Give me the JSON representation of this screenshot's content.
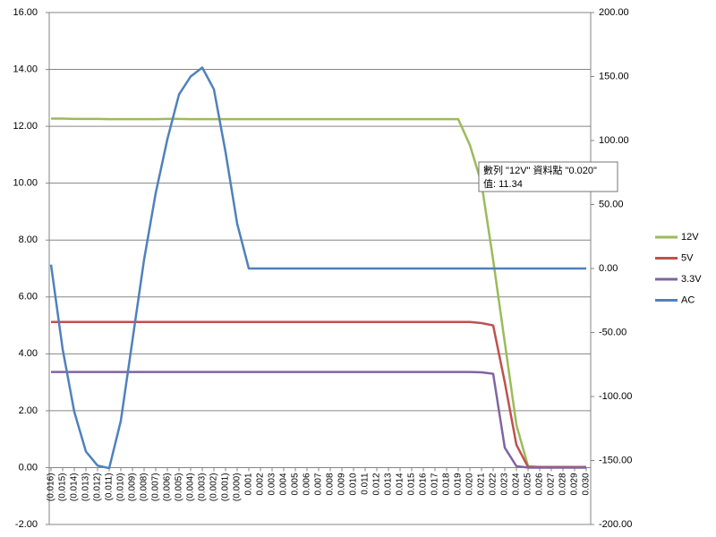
{
  "chart_data": {
    "type": "line",
    "categories": [
      "(0.016)",
      "(0.015)",
      "(0.014)",
      "(0.013)",
      "(0.012)",
      "(0.011)",
      "(0.010)",
      "(0.009)",
      "(0.008)",
      "(0.007)",
      "(0.006)",
      "(0.005)",
      "(0.004)",
      "(0.003)",
      "(0.002)",
      "(0.001)",
      "(0.000)",
      "0.001",
      "0.002",
      "0.003",
      "0.004",
      "0.005",
      "0.006",
      "0.007",
      "0.008",
      "0.009",
      "0.010",
      "0.011",
      "0.012",
      "0.013",
      "0.014",
      "0.015",
      "0.016",
      "0.017",
      "0.018",
      "0.019",
      "0.020",
      "0.021",
      "0.022",
      "0.023",
      "0.024",
      "0.025",
      "0.026",
      "0.027",
      "0.028",
      "0.029",
      "0.030"
    ],
    "series": [
      {
        "name": "12V",
        "color": "#9bbb59",
        "values": [
          12.27,
          12.27,
          12.26,
          12.26,
          12.26,
          12.25,
          12.25,
          12.25,
          12.25,
          12.25,
          12.26,
          12.26,
          12.25,
          12.25,
          12.25,
          12.25,
          12.25,
          12.25,
          12.25,
          12.25,
          12.25,
          12.25,
          12.25,
          12.25,
          12.25,
          12.25,
          12.25,
          12.25,
          12.25,
          12.25,
          12.25,
          12.25,
          12.25,
          12.25,
          12.25,
          12.25,
          11.34,
          10.0,
          7.3,
          4.4,
          1.5,
          0.05,
          0.02,
          0.02,
          0.02,
          0.02,
          0.02
        ]
      },
      {
        "name": "5V",
        "color": "#c0504d",
        "values": [
          5.12,
          5.12,
          5.12,
          5.12,
          5.12,
          5.12,
          5.12,
          5.12,
          5.12,
          5.12,
          5.12,
          5.12,
          5.12,
          5.12,
          5.12,
          5.12,
          5.12,
          5.12,
          5.12,
          5.12,
          5.12,
          5.12,
          5.12,
          5.12,
          5.12,
          5.12,
          5.12,
          5.12,
          5.12,
          5.12,
          5.12,
          5.12,
          5.12,
          5.12,
          5.12,
          5.12,
          5.12,
          5.08,
          5.0,
          3.0,
          0.8,
          0.02,
          0.02,
          0.02,
          0.02,
          0.02,
          0.02
        ]
      },
      {
        "name": "3.3V",
        "color": "#8064a2",
        "values": [
          3.36,
          3.36,
          3.36,
          3.36,
          3.36,
          3.36,
          3.36,
          3.36,
          3.36,
          3.36,
          3.36,
          3.36,
          3.36,
          3.36,
          3.36,
          3.36,
          3.36,
          3.36,
          3.36,
          3.36,
          3.36,
          3.36,
          3.36,
          3.36,
          3.36,
          3.36,
          3.36,
          3.36,
          3.36,
          3.36,
          3.36,
          3.36,
          3.36,
          3.36,
          3.36,
          3.36,
          3.36,
          3.35,
          3.3,
          0.7,
          0.05,
          0.0,
          0.0,
          0.0,
          0.0,
          0.0,
          0.0
        ]
      },
      {
        "name": "AC",
        "color": "#4f81bd",
        "axis": "y2",
        "values": [
          3,
          -63,
          -112,
          -143,
          -154,
          -156,
          -119,
          -56,
          7,
          59,
          101,
          136,
          150,
          157,
          140,
          91,
          35,
          0,
          0,
          0,
          0,
          0,
          0,
          0,
          0,
          0,
          0,
          0,
          0,
          0,
          0,
          0,
          0,
          0,
          0,
          0,
          0,
          0,
          0,
          0,
          0,
          0,
          0,
          0,
          0,
          0,
          0
        ]
      }
    ],
    "ylim": [
      -2,
      16
    ],
    "yticks": [
      {
        "value": -2,
        "label": "-2.00"
      },
      {
        "value": 0,
        "label": "0.00"
      },
      {
        "value": 2,
        "label": "2.00"
      },
      {
        "value": 4,
        "label": "4.00"
      },
      {
        "value": 6,
        "label": "6.00"
      },
      {
        "value": 8,
        "label": "8.00"
      },
      {
        "value": 10,
        "label": "10.00"
      },
      {
        "value": 12,
        "label": "12.00"
      },
      {
        "value": 14,
        "label": "14.00"
      },
      {
        "value": 16,
        "label": "16.00"
      }
    ],
    "y2lim": [
      -200,
      200
    ],
    "y2ticks": [
      {
        "value": -200,
        "label": "-200.00"
      },
      {
        "value": -150,
        "label": "-150.00"
      },
      {
        "value": -100,
        "label": "-100.00"
      },
      {
        "value": -50,
        "label": "-50.00"
      },
      {
        "value": 0,
        "label": "0.00"
      },
      {
        "value": 50,
        "label": "50.00"
      },
      {
        "value": 100,
        "label": "100.00"
      },
      {
        "value": 150,
        "label": "150.00"
      },
      {
        "value": 200,
        "label": "200.00"
      }
    ],
    "grid": true,
    "legend": "right",
    "tooltip": [
      "數列 \"12V\" 資料點 \"0.020\"",
      "值: 11.34"
    ]
  }
}
